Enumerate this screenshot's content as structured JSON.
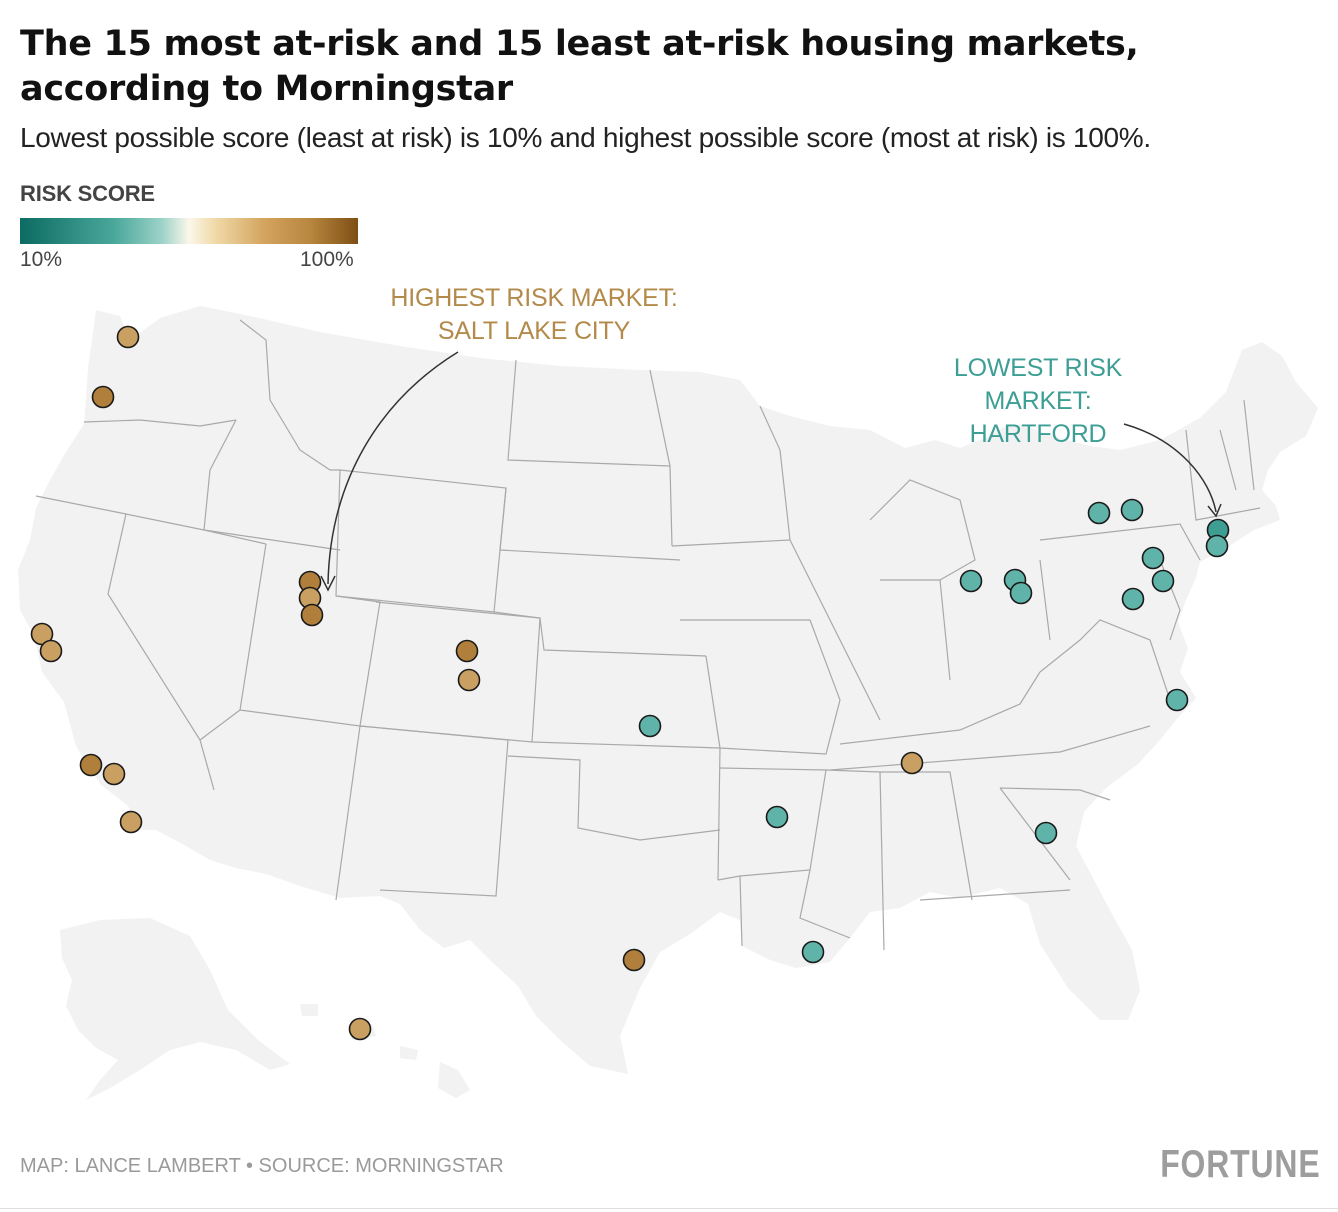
{
  "header": {
    "title": "The 15 most at-risk and 15 least at-risk housing markets, according to Morningstar",
    "subtitle": "Lowest possible score (least at risk) is 10% and highest possible score (most at risk) is 100%."
  },
  "legend": {
    "title": "RISK SCORE",
    "min_label": "10%",
    "max_label": "100%",
    "colors": [
      "#0c6b62",
      "#4aa89b",
      "#9dd2c8",
      "#fbf7ea",
      "#f0d9a6",
      "#d4a560",
      "#b7863f",
      "#7d4f14"
    ]
  },
  "annotations": {
    "highest": {
      "line1": "HIGHEST RISK MARKET:",
      "line2": "SALT LAKE CITY",
      "color": "#b38a4a"
    },
    "lowest": {
      "line1": "LOWEST RISK",
      "line2": "MARKET:",
      "line3": "HARTFORD",
      "color": "#3c9e94"
    }
  },
  "map_colors": {
    "land": "#f2f2f2",
    "state_border": "#a9a9a9",
    "high_risk": "#c9a062",
    "high_risk_dark": "#b17f3c",
    "low_risk": "#5fb3a8",
    "low_risk_dark": "#3f9e93",
    "marker_outline": "#1a1a1a"
  },
  "markets": {
    "high_risk": [
      {
        "lon": -122.3,
        "lat": 47.6,
        "score": "high"
      },
      {
        "lon": -122.7,
        "lat": 45.5,
        "score": "high"
      },
      {
        "lon": -111.9,
        "lat": 40.76,
        "score": "highest"
      },
      {
        "lon": -111.9,
        "lat": 40.5,
        "score": "high"
      },
      {
        "lon": -111.7,
        "lat": 40.23,
        "score": "high"
      },
      {
        "lon": -122.3,
        "lat": 37.8,
        "score": "high"
      },
      {
        "lon": -121.9,
        "lat": 37.35,
        "score": "high"
      },
      {
        "lon": -119.0,
        "lat": 34.3,
        "score": "high"
      },
      {
        "lon": -118.2,
        "lat": 34.05,
        "score": "high"
      },
      {
        "lon": -117.1,
        "lat": 32.72,
        "score": "high"
      },
      {
        "lon": -104.9,
        "lat": 39.74,
        "score": "high"
      },
      {
        "lon": -104.8,
        "lat": 38.83,
        "score": "high"
      },
      {
        "lon": -86.8,
        "lat": 36.16,
        "score": "high"
      },
      {
        "lon": -97.7,
        "lat": 30.27,
        "score": "high"
      },
      {
        "lon": -157.9,
        "lat": 21.31,
        "score": "high"
      }
    ],
    "low_risk": [
      {
        "lon": -72.68,
        "lat": 41.76,
        "score": "lowest"
      },
      {
        "lon": -72.9,
        "lat": 41.31,
        "score": "low"
      },
      {
        "lon": -78.9,
        "lat": 42.9,
        "score": "low"
      },
      {
        "lon": -77.6,
        "lat": 43.16,
        "score": "low"
      },
      {
        "lon": -75.2,
        "lat": 40.9,
        "score": "low"
      },
      {
        "lon": -75.1,
        "lat": 40.2,
        "score": "low"
      },
      {
        "lon": -76.3,
        "lat": 40.0,
        "score": "low"
      },
      {
        "lon": -83.5,
        "lat": 41.65,
        "score": "low"
      },
      {
        "lon": -81.7,
        "lat": 41.5,
        "score": "low"
      },
      {
        "lon": -81.5,
        "lat": 41.08,
        "score": "low"
      },
      {
        "lon": -76.3,
        "lat": 36.85,
        "score": "low"
      },
      {
        "lon": -97.3,
        "lat": 37.69,
        "score": "low"
      },
      {
        "lon": -92.3,
        "lat": 34.75,
        "score": "low"
      },
      {
        "lon": -90.9,
        "lat": 30.45,
        "score": "low"
      },
      {
        "lon": -82.0,
        "lat": 33.47,
        "score": "low"
      }
    ]
  },
  "footer": {
    "credit": "MAP: LANCE LAMBERT • SOURCE: MORNINGSTAR",
    "brand": "FORTUNE"
  }
}
